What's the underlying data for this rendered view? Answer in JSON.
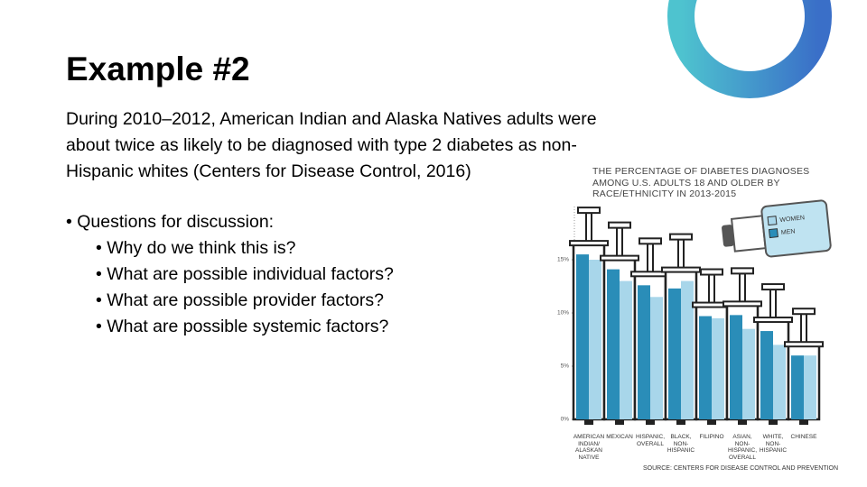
{
  "slide": {
    "title": "Example #2",
    "paragraph_lines": [
      "During 2010–2012, American Indian and Alaska Natives adults were",
      "about twice as likely to be diagnosed with type 2 diabetes as non-",
      "Hispanic whites (Centers for Disease Control, 2016)"
    ],
    "bullets": [
      "• Questions for discussion:",
      "• Why do we think this is?",
      "• What are possible individual factors?",
      "• What are possible provider factors?",
      "• What are possible systemic factors?"
    ]
  },
  "chart_data": {
    "type": "syringe-bar",
    "title": "THE PERCENTAGE OF DIABETES DIAGNOSES AMONG U.S. ADULTS 18 AND OLDER BY RACE/ETHNICITY IN 2013-2015",
    "categories": [
      "AMERICAN INDIAN/ ALASKAN NATIVE",
      "MEXICAN",
      "HISPANIC, OVERALL",
      "BLACK, NON-HISPANIC",
      "FILIPINO",
      "ASIAN, NON-HISPANIC, OVERALL",
      "WHITE, NON-HISPANIC",
      "CHINESE"
    ],
    "series": [
      {
        "name": "MEN",
        "color": "#2a8db8",
        "values": [
          15.5,
          14.1,
          12.6,
          12.3,
          9.7,
          9.8,
          8.3,
          6.0
        ]
      },
      {
        "name": "WOMEN",
        "color": "#a8d6ea",
        "values": [
          15.0,
          13.0,
          11.5,
          13.0,
          9.5,
          8.5,
          7.0,
          6.0
        ]
      }
    ],
    "ylim": [
      0,
      20
    ],
    "yticks": [
      {
        "value": 0,
        "label": "0%"
      },
      {
        "value": 5,
        "label": "5%"
      },
      {
        "value": 10,
        "label": "10%"
      },
      {
        "value": 15,
        "label": "15%"
      }
    ],
    "source": "SOURCE: CENTERS FOR DISEASE CONTROL AND PREVENTION"
  }
}
